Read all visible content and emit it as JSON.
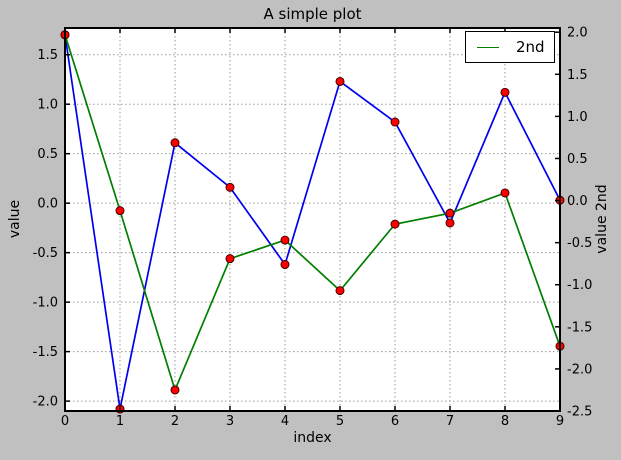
{
  "figure": {
    "background": "#c0c0c0",
    "plot_background": "#ffffff",
    "frame_color": "#000000",
    "grid_color": "#999999"
  },
  "chart_data": {
    "type": "line",
    "title": "A simple plot",
    "xlabel": "index",
    "ylabel_left": "value",
    "ylabel_right": "value 2nd",
    "x": [
      0,
      1,
      2,
      3,
      4,
      5,
      6,
      7,
      8,
      9
    ],
    "series": [
      {
        "name": "",
        "axis": "left",
        "color": "#0000ee",
        "values": [
          1.7,
          -2.08,
          0.61,
          0.16,
          -0.62,
          1.23,
          0.82,
          -0.2,
          1.12,
          0.03
        ]
      },
      {
        "name": "2nd",
        "axis": "right",
        "color": "#007f00",
        "values": [
          1.97,
          -0.12,
          -2.25,
          -0.69,
          -0.47,
          -1.07,
          -0.28,
          -0.15,
          0.09,
          -1.73
        ]
      }
    ],
    "marker": {
      "shape": "circle",
      "fill": "#ff0000",
      "edge": "#400000",
      "radius": 4
    },
    "legend": {
      "label": "2nd",
      "position": "upper-right"
    },
    "xlim": [
      0,
      9
    ],
    "ylim_left": [
      -2.1,
      1.77
    ],
    "ylim_right": [
      -2.5,
      2.05
    ],
    "x_tick_labels": [
      "0",
      "1",
      "2",
      "3",
      "4",
      "5",
      "6",
      "7",
      "8",
      "9"
    ],
    "y_tick_labels_left": [
      "1.5",
      "1.0",
      "0.5",
      "0.0",
      "-0.5",
      "-1.0",
      "-1.5",
      "-2.0"
    ],
    "y_tick_labels_right": [
      "2.0",
      "1.5",
      "1.0",
      "0.5",
      "0.0",
      "-0.5",
      "-1.0",
      "-1.5",
      "-2.0",
      "-2.5"
    ],
    "grid": true
  }
}
